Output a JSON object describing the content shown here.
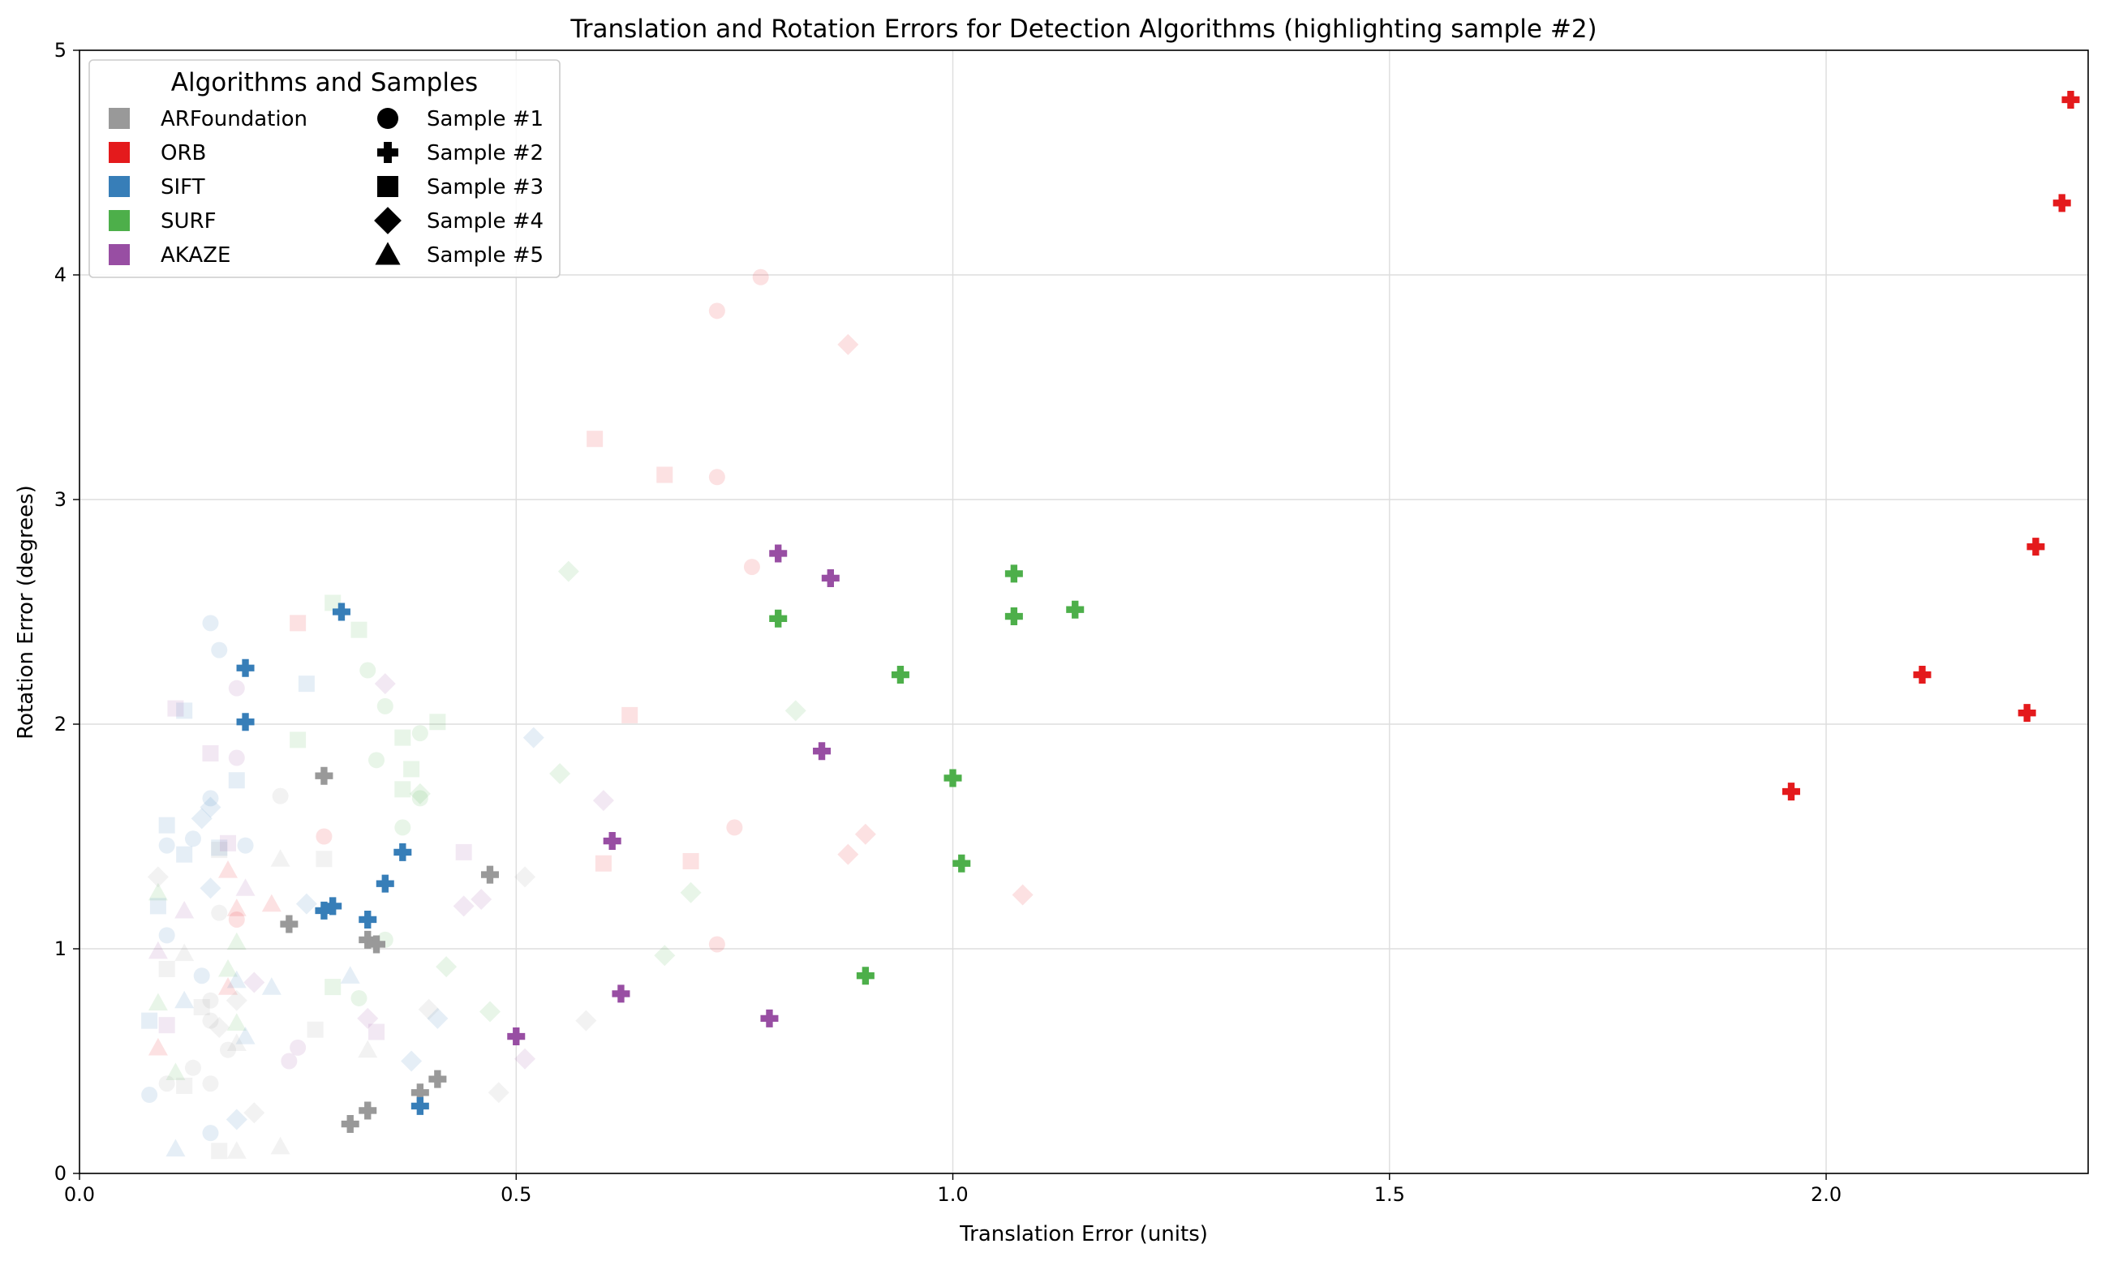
{
  "chart_data": {
    "type": "scatter",
    "title": "Translation and Rotation Errors for Detection Algorithms (highlighting sample #2)",
    "xlabel": "Translation Error (units)",
    "ylabel": "Rotation Error (degrees)",
    "xlim": [
      0,
      2.3
    ],
    "ylim": [
      0,
      5
    ],
    "xticks": [
      "0.0",
      "0.5",
      "1.0",
      "1.5",
      "2.0"
    ],
    "yticks": [
      "0",
      "1",
      "2",
      "3",
      "4",
      "5"
    ],
    "grid": true,
    "legend": {
      "title": "Algorithms and Samples",
      "placement": "top-left",
      "algorithms": [
        {
          "label": "ARFoundation",
          "color": "#999999"
        },
        {
          "label": "ORB",
          "color": "#e41a1c"
        },
        {
          "label": "SIFT",
          "color": "#377eb8"
        },
        {
          "label": "SURF",
          "color": "#4daf4a"
        },
        {
          "label": "AKAZE",
          "color": "#984ea3"
        }
      ],
      "samples": [
        {
          "label": "Sample #1",
          "marker": "circle"
        },
        {
          "label": "Sample #2",
          "marker": "plus"
        },
        {
          "label": "Sample #3",
          "marker": "square"
        },
        {
          "label": "Sample #4",
          "marker": "diamond"
        },
        {
          "label": "Sample #5",
          "marker": "triangle"
        }
      ]
    },
    "highlighted_sample": "Sample #2",
    "series": [
      {
        "algorithm": "ARFoundation",
        "sample": "Sample #2",
        "points": [
          [
            0.28,
            1.77
          ],
          [
            0.24,
            1.11
          ],
          [
            0.47,
            1.33
          ],
          [
            0.33,
            1.04
          ],
          [
            0.34,
            1.02
          ],
          [
            0.31,
            0.22
          ],
          [
            0.33,
            0.28
          ],
          [
            0.39,
            0.36
          ],
          [
            0.41,
            0.42
          ]
        ]
      },
      {
        "algorithm": "ORB",
        "sample": "Sample #2",
        "points": [
          [
            2.28,
            4.78
          ],
          [
            2.27,
            4.32
          ],
          [
            2.24,
            2.79
          ],
          [
            2.11,
            2.22
          ],
          [
            2.23,
            2.05
          ],
          [
            1.96,
            1.7
          ]
        ]
      },
      {
        "algorithm": "SIFT",
        "sample": "Sample #2",
        "points": [
          [
            0.3,
            2.5
          ],
          [
            0.19,
            2.25
          ],
          [
            0.19,
            2.01
          ],
          [
            0.37,
            1.43
          ],
          [
            0.35,
            1.29
          ],
          [
            0.28,
            1.17
          ],
          [
            0.29,
            1.19
          ],
          [
            0.33,
            1.13
          ],
          [
            0.39,
            0.3
          ]
        ]
      },
      {
        "algorithm": "SURF",
        "sample": "Sample #2",
        "points": [
          [
            1.07,
            2.67
          ],
          [
            0.8,
            2.47
          ],
          [
            1.07,
            2.48
          ],
          [
            1.14,
            2.51
          ],
          [
            0.94,
            2.22
          ],
          [
            1.0,
            1.76
          ],
          [
            1.01,
            1.38
          ],
          [
            0.9,
            0.88
          ]
        ]
      },
      {
        "algorithm": "AKAZE",
        "sample": "Sample #2",
        "points": [
          [
            0.8,
            2.76
          ],
          [
            0.86,
            2.65
          ],
          [
            0.85,
            1.88
          ],
          [
            0.61,
            1.48
          ],
          [
            0.62,
            0.8
          ],
          [
            0.79,
            0.69
          ],
          [
            0.5,
            0.61
          ]
        ]
      },
      {
        "algorithm": "ORB",
        "sample": "Sample #1",
        "faded": true,
        "points": [
          [
            0.78,
            3.99
          ],
          [
            0.73,
            3.84
          ],
          [
            0.73,
            3.1
          ],
          [
            0.77,
            2.7
          ],
          [
            0.75,
            1.54
          ],
          [
            0.73,
            1.02
          ],
          [
            0.18,
            1.13
          ],
          [
            0.28,
            1.5
          ]
        ]
      },
      {
        "algorithm": "ORB",
        "sample": "Sample #3",
        "faded": true,
        "points": [
          [
            0.59,
            3.27
          ],
          [
            0.67,
            3.11
          ],
          [
            0.63,
            2.04
          ],
          [
            0.7,
            1.39
          ],
          [
            0.6,
            1.38
          ],
          [
            0.25,
            2.45
          ]
        ]
      },
      {
        "algorithm": "ORB",
        "sample": "Sample #4",
        "faded": true,
        "points": [
          [
            0.88,
            3.69
          ],
          [
            0.9,
            1.51
          ],
          [
            0.88,
            1.42
          ],
          [
            1.08,
            1.24
          ]
        ]
      },
      {
        "algorithm": "ORB",
        "sample": "Sample #5",
        "faded": true,
        "points": [
          [
            0.17,
            1.35
          ],
          [
            0.22,
            1.2
          ],
          [
            0.18,
            1.18
          ],
          [
            0.09,
            0.56
          ],
          [
            0.17,
            0.83
          ]
        ]
      },
      {
        "algorithm": "SURF",
        "sample": "Sample #1",
        "faded": true,
        "points": [
          [
            0.33,
            2.24
          ],
          [
            0.35,
            2.08
          ],
          [
            0.39,
            1.96
          ],
          [
            0.34,
            1.84
          ],
          [
            0.37,
            1.54
          ],
          [
            0.39,
            1.67
          ],
          [
            0.32,
            0.78
          ],
          [
            0.35,
            1.04
          ]
        ]
      },
      {
        "algorithm": "SURF",
        "sample": "Sample #3",
        "faded": true,
        "points": [
          [
            0.29,
            2.54
          ],
          [
            0.32,
            2.42
          ],
          [
            0.41,
            2.01
          ],
          [
            0.37,
            1.94
          ],
          [
            0.25,
            1.93
          ],
          [
            0.38,
            1.8
          ],
          [
            0.37,
            1.71
          ],
          [
            0.29,
            0.83
          ]
        ]
      },
      {
        "algorithm": "SURF",
        "sample": "Sample #4",
        "faded": true,
        "points": [
          [
            0.56,
            2.68
          ],
          [
            0.82,
            2.06
          ],
          [
            0.55,
            1.78
          ],
          [
            0.39,
            1.69
          ],
          [
            0.7,
            1.25
          ],
          [
            0.67,
            0.97
          ],
          [
            0.42,
            0.92
          ],
          [
            0.47,
            0.72
          ]
        ]
      },
      {
        "algorithm": "SURF",
        "sample": "Sample #5",
        "faded": true,
        "points": [
          [
            0.09,
            1.25
          ],
          [
            0.18,
            1.03
          ],
          [
            0.17,
            0.91
          ],
          [
            0.09,
            0.76
          ],
          [
            0.18,
            0.67
          ],
          [
            0.11,
            0.45
          ]
        ]
      },
      {
        "algorithm": "SIFT",
        "sample": "Sample #1",
        "faded": true,
        "points": [
          [
            0.15,
            2.45
          ],
          [
            0.16,
            2.33
          ],
          [
            0.15,
            1.67
          ],
          [
            0.1,
            1.46
          ],
          [
            0.13,
            1.49
          ],
          [
            0.19,
            1.46
          ],
          [
            0.1,
            1.06
          ],
          [
            0.14,
            0.88
          ],
          [
            0.08,
            0.35
          ],
          [
            0.15,
            0.18
          ]
        ]
      },
      {
        "algorithm": "SIFT",
        "sample": "Sample #3",
        "faded": true,
        "points": [
          [
            0.12,
            2.06
          ],
          [
            0.26,
            2.18
          ],
          [
            0.18,
            1.75
          ],
          [
            0.1,
            1.55
          ],
          [
            0.12,
            1.42
          ],
          [
            0.16,
            1.45
          ],
          [
            0.09,
            1.19
          ],
          [
            0.08,
            0.68
          ]
        ]
      },
      {
        "algorithm": "SIFT",
        "sample": "Sample #4",
        "faded": true,
        "points": [
          [
            0.52,
            1.94
          ],
          [
            0.15,
            1.63
          ],
          [
            0.14,
            1.58
          ],
          [
            0.15,
            1.27
          ],
          [
            0.26,
            1.2
          ],
          [
            0.41,
            0.69
          ],
          [
            0.38,
            0.5
          ],
          [
            0.18,
            0.24
          ]
        ]
      },
      {
        "algorithm": "SIFT",
        "sample": "Sample #5",
        "faded": true,
        "points": [
          [
            0.31,
            0.88
          ],
          [
            0.22,
            0.83
          ],
          [
            0.18,
            0.86
          ],
          [
            0.19,
            0.61
          ],
          [
            0.12,
            0.77
          ],
          [
            0.11,
            0.11
          ]
        ]
      },
      {
        "algorithm": "ARFoundation",
        "sample": "Sample #1",
        "faded": true,
        "points": [
          [
            0.23,
            1.68
          ],
          [
            0.16,
            1.16
          ],
          [
            0.15,
            0.77
          ],
          [
            0.15,
            0.68
          ],
          [
            0.17,
            0.55
          ],
          [
            0.13,
            0.47
          ],
          [
            0.15,
            0.4
          ],
          [
            0.1,
            0.4
          ]
        ]
      },
      {
        "algorithm": "ARFoundation",
        "sample": "Sample #3",
        "faded": true,
        "points": [
          [
            0.28,
            1.4
          ],
          [
            0.16,
            1.44
          ],
          [
            0.14,
            0.74
          ],
          [
            0.1,
            0.91
          ],
          [
            0.27,
            0.64
          ],
          [
            0.12,
            0.39
          ],
          [
            0.16,
            0.1
          ]
        ]
      },
      {
        "algorithm": "ARFoundation",
        "sample": "Sample #4",
        "faded": true,
        "points": [
          [
            0.09,
            1.32
          ],
          [
            0.51,
            1.32
          ],
          [
            0.4,
            0.73
          ],
          [
            0.18,
            0.77
          ],
          [
            0.58,
            0.68
          ],
          [
            0.16,
            0.65
          ],
          [
            0.48,
            0.36
          ],
          [
            0.2,
            0.27
          ]
        ]
      },
      {
        "algorithm": "ARFoundation",
        "sample": "Sample #5",
        "faded": true,
        "points": [
          [
            0.23,
            1.4
          ],
          [
            0.12,
            0.98
          ],
          [
            0.33,
            0.55
          ],
          [
            0.18,
            0.58
          ],
          [
            0.18,
            0.1
          ],
          [
            0.23,
            0.12
          ]
        ]
      },
      {
        "algorithm": "AKAZE",
        "sample": "Sample #1",
        "faded": true,
        "points": [
          [
            0.18,
            2.16
          ],
          [
            0.18,
            1.85
          ],
          [
            0.25,
            0.56
          ],
          [
            0.24,
            0.5
          ]
        ]
      },
      {
        "algorithm": "AKAZE",
        "sample": "Sample #3",
        "faded": true,
        "points": [
          [
            0.11,
            2.07
          ],
          [
            0.15,
            1.87
          ],
          [
            0.17,
            1.47
          ],
          [
            0.44,
            1.43
          ],
          [
            0.1,
            0.66
          ],
          [
            0.34,
            0.63
          ]
        ]
      },
      {
        "algorithm": "AKAZE",
        "sample": "Sample #4",
        "faded": true,
        "points": [
          [
            0.35,
            2.18
          ],
          [
            0.6,
            1.66
          ],
          [
            0.46,
            1.22
          ],
          [
            0.44,
            1.19
          ],
          [
            0.2,
            0.85
          ],
          [
            0.33,
            0.69
          ],
          [
            0.51,
            0.51
          ]
        ]
      },
      {
        "algorithm": "AKAZE",
        "sample": "Sample #5",
        "faded": true,
        "points": [
          [
            0.19,
            1.27
          ],
          [
            0.12,
            1.17
          ],
          [
            0.09,
            0.99
          ]
        ]
      }
    ]
  }
}
